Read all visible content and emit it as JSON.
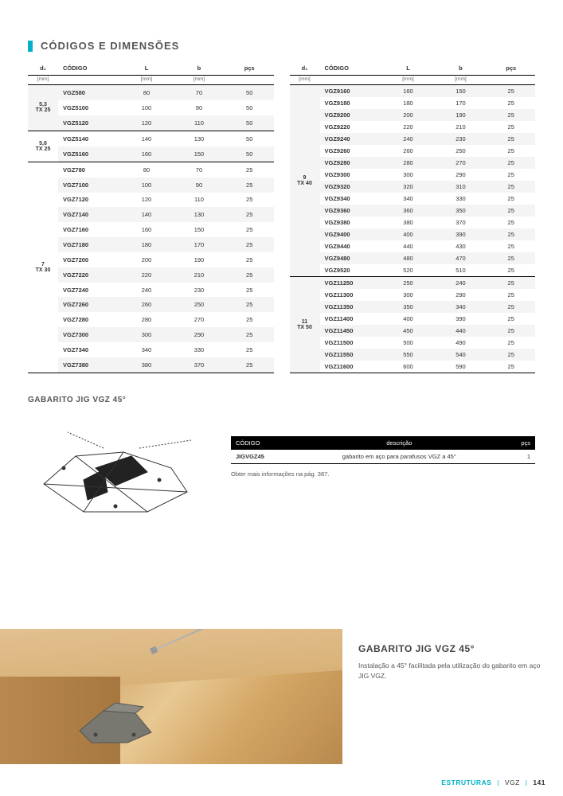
{
  "header": {
    "title": "CÓDIGOS E DIMENSÕES"
  },
  "columns": {
    "d1": "d₁",
    "code": "CÓDIGO",
    "L": "L",
    "b": "b",
    "pcs": "pçs",
    "d1_unit": "[mm]",
    "L_unit": "[mm]",
    "b_unit": "[mm]"
  },
  "left_groups": [
    {
      "d1": "5,3\nTX 25",
      "rows": [
        {
          "code": "VGZ580",
          "L": "80",
          "b": "70",
          "p": "50"
        },
        {
          "code": "VGZ5100",
          "L": "100",
          "b": "90",
          "p": "50"
        },
        {
          "code": "VGZ5120",
          "L": "120",
          "b": "110",
          "p": "50"
        }
      ]
    },
    {
      "d1": "5,6\nTX 25",
      "rows": [
        {
          "code": "VGZ5140",
          "L": "140",
          "b": "130",
          "p": "50"
        },
        {
          "code": "VGZ5160",
          "L": "160",
          "b": "150",
          "p": "50"
        }
      ]
    },
    {
      "d1": "7\nTX 30",
      "rows": [
        {
          "code": "VGZ780",
          "L": "80",
          "b": "70",
          "p": "25"
        },
        {
          "code": "VGZ7100",
          "L": "100",
          "b": "90",
          "p": "25"
        },
        {
          "code": "VGZ7120",
          "L": "120",
          "b": "110",
          "p": "25"
        },
        {
          "code": "VGZ7140",
          "L": "140",
          "b": "130",
          "p": "25"
        },
        {
          "code": "VGZ7160",
          "L": "160",
          "b": "150",
          "p": "25"
        },
        {
          "code": "VGZ7180",
          "L": "180",
          "b": "170",
          "p": "25"
        },
        {
          "code": "VGZ7200",
          "L": "200",
          "b": "190",
          "p": "25"
        },
        {
          "code": "VGZ7220",
          "L": "220",
          "b": "210",
          "p": "25"
        },
        {
          "code": "VGZ7240",
          "L": "240",
          "b": "230",
          "p": "25"
        },
        {
          "code": "VGZ7260",
          "L": "260",
          "b": "250",
          "p": "25"
        },
        {
          "code": "VGZ7280",
          "L": "280",
          "b": "270",
          "p": "25"
        },
        {
          "code": "VGZ7300",
          "L": "300",
          "b": "290",
          "p": "25"
        },
        {
          "code": "VGZ7340",
          "L": "340",
          "b": "330",
          "p": "25"
        },
        {
          "code": "VGZ7380",
          "L": "380",
          "b": "370",
          "p": "25"
        }
      ]
    }
  ],
  "right_groups": [
    {
      "d1": "9\nTX 40",
      "rows": [
        {
          "code": "VGZ9160",
          "L": "160",
          "b": "150",
          "p": "25"
        },
        {
          "code": "VGZ9180",
          "L": "180",
          "b": "170",
          "p": "25"
        },
        {
          "code": "VGZ9200",
          "L": "200",
          "b": "190",
          "p": "25"
        },
        {
          "code": "VGZ9220",
          "L": "220",
          "b": "210",
          "p": "25"
        },
        {
          "code": "VGZ9240",
          "L": "240",
          "b": "230",
          "p": "25"
        },
        {
          "code": "VGZ9260",
          "L": "260",
          "b": "250",
          "p": "25"
        },
        {
          "code": "VGZ9280",
          "L": "280",
          "b": "270",
          "p": "25"
        },
        {
          "code": "VGZ9300",
          "L": "300",
          "b": "290",
          "p": "25"
        },
        {
          "code": "VGZ9320",
          "L": "320",
          "b": "310",
          "p": "25"
        },
        {
          "code": "VGZ9340",
          "L": "340",
          "b": "330",
          "p": "25"
        },
        {
          "code": "VGZ9360",
          "L": "360",
          "b": "350",
          "p": "25"
        },
        {
          "code": "VGZ9380",
          "L": "380",
          "b": "370",
          "p": "25"
        },
        {
          "code": "VGZ9400",
          "L": "400",
          "b": "390",
          "p": "25"
        },
        {
          "code": "VGZ9440",
          "L": "440",
          "b": "430",
          "p": "25"
        },
        {
          "code": "VGZ9480",
          "L": "480",
          "b": "470",
          "p": "25"
        },
        {
          "code": "VGZ9520",
          "L": "520",
          "b": "510",
          "p": "25"
        }
      ]
    },
    {
      "d1": "11\nTX 50",
      "rows": [
        {
          "code": "VGZ11250",
          "L": "250",
          "b": "240",
          "p": "25"
        },
        {
          "code": "VGZ11300",
          "L": "300",
          "b": "290",
          "p": "25"
        },
        {
          "code": "VGZ11350",
          "L": "350",
          "b": "340",
          "p": "25"
        },
        {
          "code": "VGZ11400",
          "L": "400",
          "b": "390",
          "p": "25"
        },
        {
          "code": "VGZ11450",
          "L": "450",
          "b": "440",
          "p": "25"
        },
        {
          "code": "VGZ11500",
          "L": "500",
          "b": "490",
          "p": "25"
        },
        {
          "code": "VGZ11550",
          "L": "550",
          "b": "540",
          "p": "25"
        },
        {
          "code": "VGZ11600",
          "L": "600",
          "b": "590",
          "p": "25"
        }
      ]
    }
  ],
  "jig": {
    "section_title": "GABARITO JIG VGZ 45°",
    "th_code": "CÓDIGO",
    "th_desc": "descrição",
    "th_pcs": "pçs",
    "row": {
      "code": "JIGVGZ45",
      "desc": "gabarito em aço para parafusos VGZ a 45°",
      "pcs": "1"
    },
    "note": "Obter mais informações na pág. 387."
  },
  "photo_block": {
    "title": "GABARITO JIG VGZ 45°",
    "text": "Instalação a 45° facilitada pela utilização do gabarito em aço JIG VGZ."
  },
  "footer": {
    "cat": "ESTRUTURAS",
    "prod": "VGZ",
    "page": "141"
  }
}
